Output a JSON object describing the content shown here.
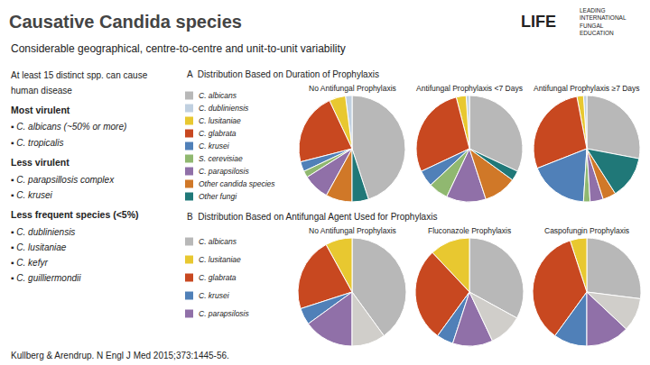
{
  "title": "Causative Candida species",
  "subtitle": "Considerable geographical, centre-to-centre and unit-to-unit variability",
  "annotations": [
    "LIFE",
    "LEADING\nINTERNATIONAL\nFUNGAL\nEDUCATION",
    "A  Distribution Based on Duration of Prophylaxis",
    "B  Distribution Based on Antifungal Agent Used for Prophylaxis",
    "At least 15 distinct spp. can cause",
    "human disease",
    "Most virulent",
    "▪ C. albicans (~50% or more)",
    "▪ C. tropicalis",
    "Less virulent",
    "▪ C. parapsillosis complex",
    "▪ C. krusei",
    "Less frequent species (<5%)",
    "▪ C. dubliniensis",
    "▪ C. lusitaniae",
    "▪ C. kefyr",
    "▪ C. guilliermondii",
    "Kullberg & Arendrup. N Engl J Med 2015;373:1445-56."
  ],
  "chart_data": [
    {
      "type": "pie",
      "title": "No Antifungal Prophylaxis",
      "categories": [
        "C. albicans",
        "C. dubliniensis",
        "C. lusitaniae",
        "C. glabrata",
        "C. krusei",
        "S. cerevisiae",
        "C. parapsilosis",
        "Other candida species",
        "Other fungi"
      ],
      "values": [
        45,
        2,
        5,
        22,
        3,
        2,
        8,
        8,
        5
      ],
      "colors": [
        "#b8b8b8",
        "#c0d0e0",
        "#e8c830",
        "#c84820",
        "#5080b8",
        "#90b870",
        "#9070a8",
        "#d07828",
        "#207878"
      ],
      "legend": "left"
    },
    {
      "type": "pie",
      "title": "Antifungal Prophylaxis <7 Days",
      "categories": [
        "C. albicans",
        "C. dubliniensis",
        "C. lusitaniae",
        "C. glabrata",
        "C. krusei",
        "S. cerevisiae",
        "C. parapsilosis",
        "Other candida species",
        "Other fungi"
      ],
      "values": [
        32,
        1,
        3,
        28,
        5,
        6,
        12,
        10,
        3
      ],
      "colors": [
        "#b8b8b8",
        "#c0d0e0",
        "#e8c830",
        "#c84820",
        "#5080b8",
        "#90b870",
        "#9070a8",
        "#d07828",
        "#207878"
      ]
    },
    {
      "type": "pie",
      "title": "Antifungal Prophylaxis ≥7 Days",
      "categories": [
        "C. albicans",
        "C. dubliniensis",
        "C. lusitaniae",
        "C. glabrata",
        "C. krusei",
        "S. cerevisiae",
        "C. parapsilosis",
        "Other candida species",
        "Other fungi"
      ],
      "values": [
        28,
        1,
        2,
        28,
        18,
        2,
        4,
        4,
        13
      ],
      "colors": [
        "#b8b8b8",
        "#c0d0e0",
        "#e8c830",
        "#c84820",
        "#5080b8",
        "#90b870",
        "#9070a8",
        "#d07828",
        "#207878"
      ]
    },
    {
      "type": "pie",
      "title": "No Antifungal Prophylaxis",
      "categories": [
        "C. albicans",
        "C. lusitaniae",
        "C. glabrata",
        "C. krusei",
        "C. parapsilosis",
        null
      ],
      "values": [
        40,
        8,
        22,
        5,
        15,
        10
      ],
      "colors": [
        "#b8b8b8",
        "#e8c830",
        "#c84820",
        "#5080b8",
        "#9070a8",
        "#d0ceca"
      ],
      "legend": "left"
    },
    {
      "type": "pie",
      "title": "Fluconazole Prophylaxis",
      "categories": [
        "C. albicans",
        "C. lusitaniae",
        "C. glabrata",
        "C. krusei",
        "C. parapsilosis",
        null
      ],
      "values": [
        33,
        12,
        28,
        5,
        12,
        10
      ],
      "colors": [
        "#b8b8b8",
        "#e8c830",
        "#c84820",
        "#5080b8",
        "#9070a8",
        "#d0ceca"
      ]
    },
    {
      "type": "pie",
      "title": "Caspofungin Prophylaxis",
      "categories": [
        "C. albicans",
        "C. lusitaniae",
        "C. glabrata",
        "C. krusei",
        "C. parapsilosis",
        null
      ],
      "values": [
        27,
        5,
        35,
        10,
        13,
        10
      ],
      "colors": [
        "#b8b8b8",
        "#e8c830",
        "#c84820",
        "#5080b8",
        "#9070a8",
        "#d0ceca"
      ]
    }
  ]
}
